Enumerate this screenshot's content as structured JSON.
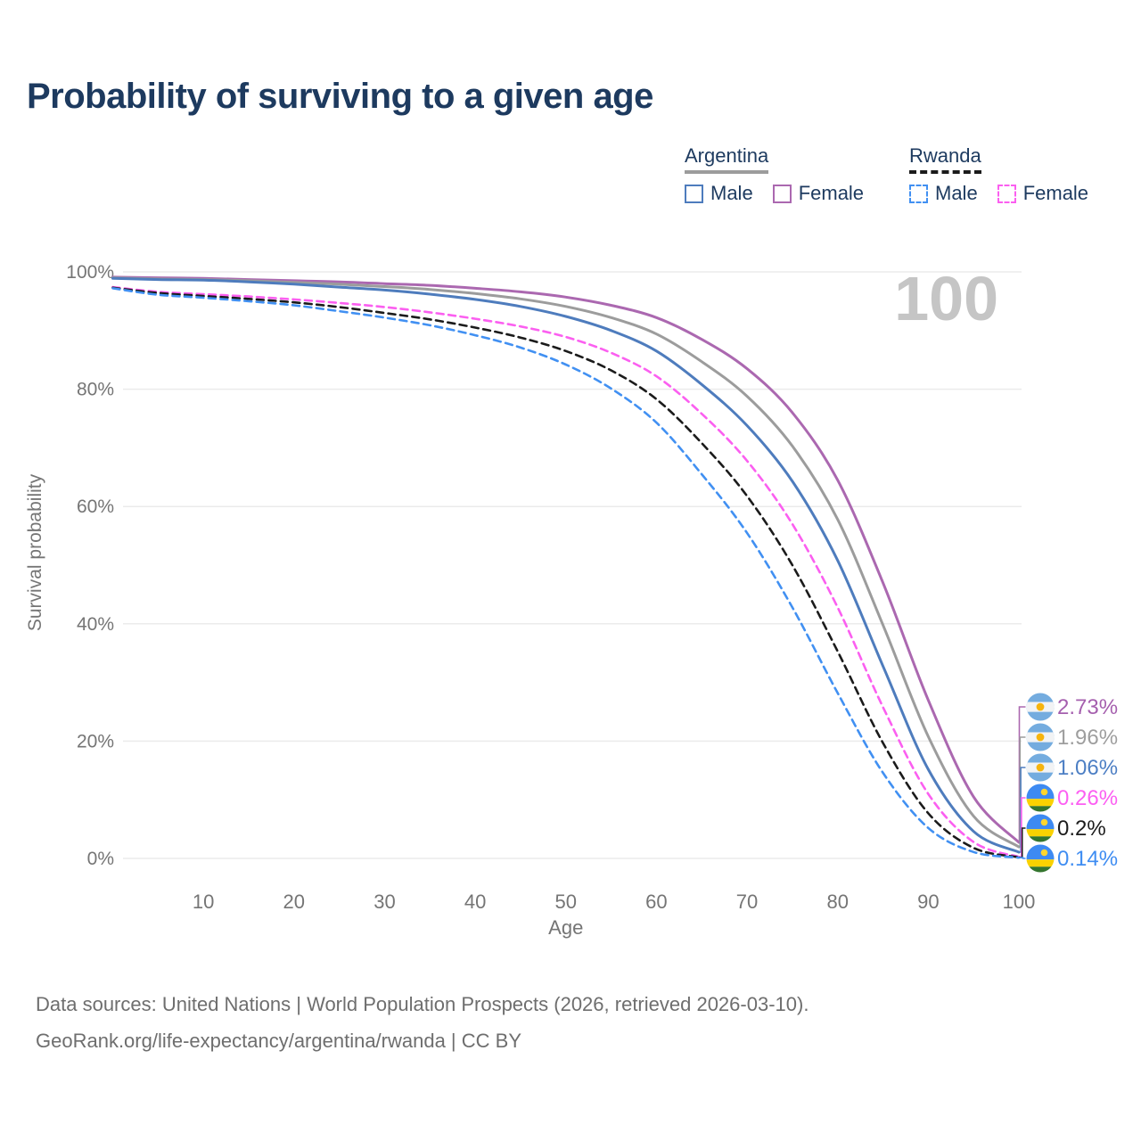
{
  "title": "Probability of surviving to a given age",
  "legend": {
    "groups": [
      {
        "name": "Argentina",
        "rule_color": "#9c9c9c",
        "rule_dashed": false,
        "items": [
          {
            "label": "Male",
            "color": "#4e7cbd",
            "dashed": false
          },
          {
            "label": "Female",
            "color": "#ab68b0",
            "dashed": false
          }
        ]
      },
      {
        "name": "Rwanda",
        "rule_color": "#1b1b1b",
        "rule_dashed": true,
        "items": [
          {
            "label": "Male",
            "color": "#4190f2",
            "dashed": true
          },
          {
            "label": "Female",
            "color": "#fb5ff0",
            "dashed": true
          }
        ]
      }
    ]
  },
  "chart_data": {
    "type": "line",
    "title": "Probability of surviving to a given age",
    "xlabel": "Age",
    "ylabel": "Survival probability",
    "xlim": [
      0,
      100
    ],
    "ylim": [
      0,
      100
    ],
    "grid": "horizontal",
    "watermark": "100",
    "x_ticks": [
      10,
      20,
      30,
      40,
      50,
      60,
      70,
      80,
      90,
      100
    ],
    "y_ticks": [
      0,
      20,
      40,
      60,
      80,
      100
    ],
    "y_tick_suffix": "%",
    "ages": [
      0,
      5,
      10,
      15,
      20,
      25,
      30,
      35,
      40,
      45,
      50,
      55,
      60,
      65,
      70,
      75,
      80,
      85,
      90,
      95,
      100
    ],
    "series": [
      {
        "name": "Argentina Female",
        "country": "argentina",
        "sex": "female",
        "color": "#ab68b0",
        "label_color": "#a55fae",
        "dashed": false,
        "end_label": "2.73%",
        "values": [
          99.1,
          99.0,
          98.9,
          98.7,
          98.5,
          98.3,
          98.0,
          97.7,
          97.2,
          96.6,
          95.7,
          94.3,
          92.2,
          88.5,
          83.5,
          76.0,
          64.5,
          47.0,
          27.0,
          10.5,
          2.73
        ]
      },
      {
        "name": "Argentina Both sexes",
        "country": "argentina",
        "sex": "both",
        "color": "#9c9c9c",
        "label_color": "#9e9e9e",
        "dashed": false,
        "end_label": "1.96%",
        "values": [
          99.0,
          98.8,
          98.7,
          98.5,
          98.2,
          97.9,
          97.5,
          97.0,
          96.3,
          95.4,
          94.1,
          92.2,
          89.4,
          84.7,
          78.8,
          70.3,
          57.8,
          39.8,
          20.8,
          7.2,
          1.96
        ]
      },
      {
        "name": "Argentina Male",
        "country": "argentina",
        "sex": "male",
        "color": "#4e7cbd",
        "label_color": "#4d7fc4",
        "dashed": false,
        "end_label": "1.06%",
        "values": [
          98.9,
          98.7,
          98.6,
          98.3,
          97.9,
          97.4,
          96.9,
          96.2,
          95.3,
          94.1,
          92.4,
          90.0,
          86.5,
          80.8,
          73.8,
          64.3,
          50.8,
          32.8,
          15.2,
          4.6,
          1.06
        ]
      },
      {
        "name": "Rwanda Female",
        "country": "rwanda",
        "sex": "female",
        "color": "#fb5ff0",
        "label_color": "#fc5ff2",
        "dashed": true,
        "end_label": "0.26%",
        "values": [
          97.4,
          96.6,
          96.2,
          95.8,
          95.3,
          94.7,
          94.0,
          93.1,
          92.0,
          90.7,
          88.9,
          86.2,
          82.2,
          75.8,
          67.8,
          57.0,
          42.8,
          25.8,
          11.0,
          2.8,
          0.26
        ]
      },
      {
        "name": "Rwanda Both sexes",
        "country": "rwanda",
        "sex": "both",
        "color": "#1b1b1b",
        "label_color": "#1c1c1c",
        "dashed": true,
        "end_label": "0.2%",
        "values": [
          97.3,
          96.4,
          95.9,
          95.4,
          94.8,
          94.0,
          93.0,
          91.9,
          90.5,
          88.8,
          86.5,
          83.2,
          78.3,
          70.8,
          61.8,
          50.0,
          35.3,
          19.7,
          7.7,
          1.8,
          0.2
        ]
      },
      {
        "name": "Rwanda Male",
        "country": "rwanda",
        "sex": "male",
        "color": "#4190f2",
        "label_color": "#3f8df2",
        "dashed": true,
        "end_label": "0.14%",
        "values": [
          97.2,
          96.1,
          95.6,
          95.0,
          94.3,
          93.3,
          92.2,
          90.9,
          89.2,
          87.1,
          84.2,
          80.1,
          74.3,
          65.5,
          55.5,
          42.8,
          28.2,
          14.6,
          5.2,
          1.1,
          0.14
        ]
      }
    ]
  },
  "flags": {
    "argentina": {
      "band": "#74acdf",
      "middle": "#f2f3f4",
      "sun": "#f6b40e"
    },
    "rwanda": {
      "blue": "#3d8af2",
      "yellow": "#fad201",
      "green": "#33752e",
      "sun": "#ffd52e"
    }
  },
  "footer": {
    "line1": "Data sources: United Nations | World Population Prospects (2026, retrieved 2026-03-10).",
    "line2": "GeoRank.org/life-expectancy/argentina/rwanda | CC BY"
  }
}
